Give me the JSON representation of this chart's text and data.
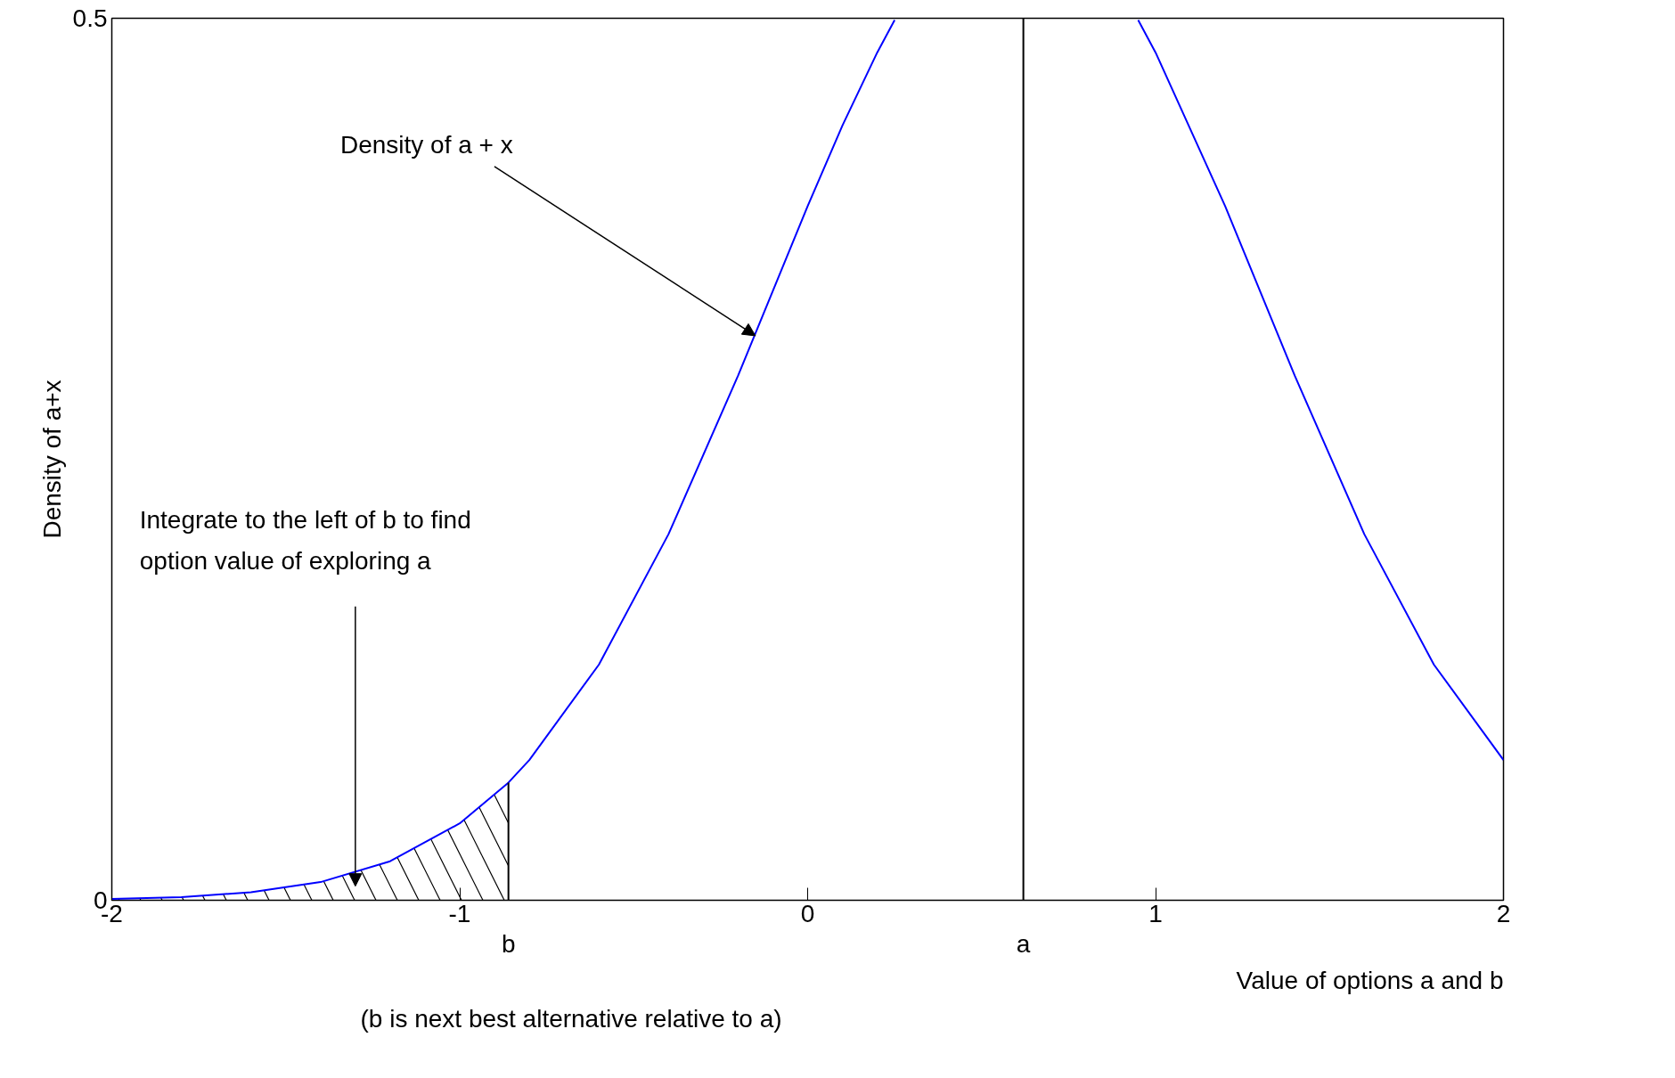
{
  "chart_data": {
    "type": "line",
    "xlabel": "Value of options a and b",
    "ylabel": "Density of a+x",
    "x": [
      -2,
      -1.8,
      -1.6,
      -1.4,
      -1.2,
      -1.0,
      -0.86,
      -0.8,
      -0.6,
      -0.4,
      -0.2,
      0,
      0.1,
      0.2,
      0.25,
      0.6,
      0.95,
      1.0,
      1.2,
      1.4,
      1.6,
      1.8,
      2.0
    ],
    "series": [
      {
        "type": "area",
        "color": "#000000",
        "x": [
          -2,
          -1.8,
          -1.6,
          -1.4,
          -1.2,
          -1.0,
          -0.86
        ],
        "values": [
          0.0007,
          0.0018,
          0.0045,
          0.0103,
          0.0221,
          0.0436,
          0.0667
        ]
      },
      {
        "color": "#0000ff",
        "values": [
          0.0007,
          0.0018,
          0.0045,
          0.0103,
          0.0221,
          0.0436,
          0.0667,
          0.0795,
          0.1336,
          0.2075,
          0.2974,
          0.3935,
          0.4392,
          0.4806,
          0.499,
          null,
          0.499,
          0.4806,
          0.3935,
          0.2974,
          0.2075,
          0.1336,
          0.0795
        ]
      }
    ],
    "xlim": [
      -2,
      2
    ],
    "ylim": [
      0,
      0.5
    ],
    "xticks": [
      -2,
      -1,
      0,
      1,
      2
    ],
    "yticks": [
      0,
      0.5
    ],
    "grid": false,
    "ref_lines": [
      {
        "axis": "x",
        "value": 0.62,
        "label": "a",
        "color": "#000000"
      },
      {
        "axis": "x",
        "value": -0.86,
        "label": "b",
        "color": "#000000"
      }
    ],
    "annotations": [
      {
        "text": "Density of a + x",
        "x": -0.15,
        "y": 0.32
      },
      "Integrate to the left of b to find\noption value of exploring a",
      "(b is next best alternative relative to a)"
    ]
  }
}
